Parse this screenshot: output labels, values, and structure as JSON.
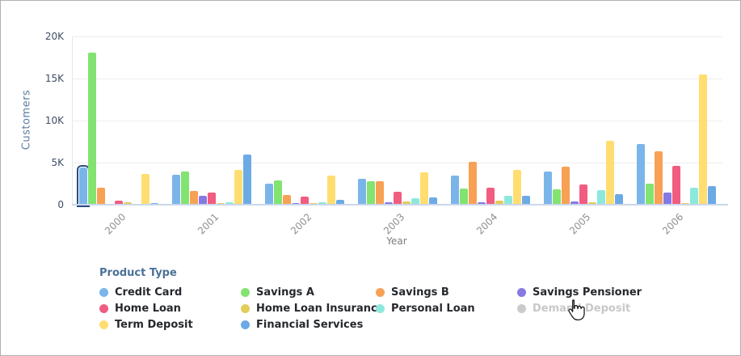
{
  "y_axis": {
    "title": "Customers",
    "tick_labels": [
      "0",
      "5K",
      "10K",
      "15K",
      "20K"
    ]
  },
  "x_axis": {
    "title": "Year",
    "labels": [
      "2000",
      "2001",
      "2002",
      "2003",
      "2004",
      "2005",
      "2006"
    ]
  },
  "chart_data": {
    "type": "bar",
    "title": "",
    "categories": [
      "2000",
      "2001",
      "2002",
      "2003",
      "2004",
      "2005",
      "2006"
    ],
    "series": [
      {
        "name": "Credit Card",
        "color": "#7ab5ea",
        "values": [
          4400,
          3600,
          2500,
          3100,
          3500,
          3900,
          7200
        ]
      },
      {
        "name": "Savings A",
        "color": "#82e371",
        "values": [
          18100,
          3900,
          2900,
          2750,
          1900,
          1850,
          2500
        ]
      },
      {
        "name": "Savings B",
        "color": "#f7a155",
        "values": [
          2000,
          1600,
          1200,
          2800,
          5100,
          4500,
          6300
        ]
      },
      {
        "name": "Savings Pensioner",
        "color": "#8679e3",
        "values": [
          50,
          1050,
          200,
          300,
          300,
          350,
          1400
        ]
      },
      {
        "name": "Home Loan",
        "color": "#f15c81",
        "values": [
          500,
          1400,
          1000,
          1500,
          2050,
          2450,
          4600
        ]
      },
      {
        "name": "Home Loan Insurance",
        "color": "#e2cc5a",
        "values": [
          250,
          150,
          200,
          350,
          450,
          250,
          200
        ]
      },
      {
        "name": "Personal Loan",
        "color": "#8de8dc",
        "values": [
          50,
          250,
          250,
          800,
          1050,
          1700,
          2000
        ]
      },
      {
        "name": "Demand Deposit",
        "color": "#cbcbcb",
        "hidden": true,
        "values": []
      },
      {
        "name": "Term Deposit",
        "color": "#ffdd71",
        "values": [
          3700,
          4100,
          3500,
          3800,
          4150,
          7600,
          15500
        ]
      },
      {
        "name": "Financial Services",
        "color": "#6caae6",
        "values": [
          150,
          6000,
          600,
          900,
          1100,
          1250,
          2200
        ]
      }
    ],
    "xlabel": "Year",
    "ylabel": "Customers",
    "ylim": [
      0,
      20000
    ],
    "grid": true,
    "legend_position": "bottom",
    "highlight": {
      "series": "Credit Card",
      "category": "2000"
    }
  },
  "legend": {
    "title": "Product Type",
    "items": [
      {
        "label": "Credit Card",
        "color": "#7ab5ea",
        "disabled": false
      },
      {
        "label": "Savings A",
        "color": "#82e371",
        "disabled": false
      },
      {
        "label": "Savings B",
        "color": "#f7a155",
        "disabled": false
      },
      {
        "label": "Savings Pensioner",
        "color": "#8679e3",
        "disabled": false
      },
      {
        "label": "Home Loan",
        "color": "#f15c81",
        "disabled": false
      },
      {
        "label": "Home Loan Insurance",
        "color": "#e2cc5a",
        "disabled": false
      },
      {
        "label": "Personal Loan",
        "color": "#8de8dc",
        "disabled": false
      },
      {
        "label": "Demand Deposit",
        "color": "#cbcbcb",
        "disabled": true
      },
      {
        "label": "Term Deposit",
        "color": "#ffdd71",
        "disabled": false
      },
      {
        "label": "Financial Services",
        "color": "#6caae6",
        "disabled": false
      }
    ]
  },
  "cursor": {
    "icon": "hand-pointer"
  }
}
